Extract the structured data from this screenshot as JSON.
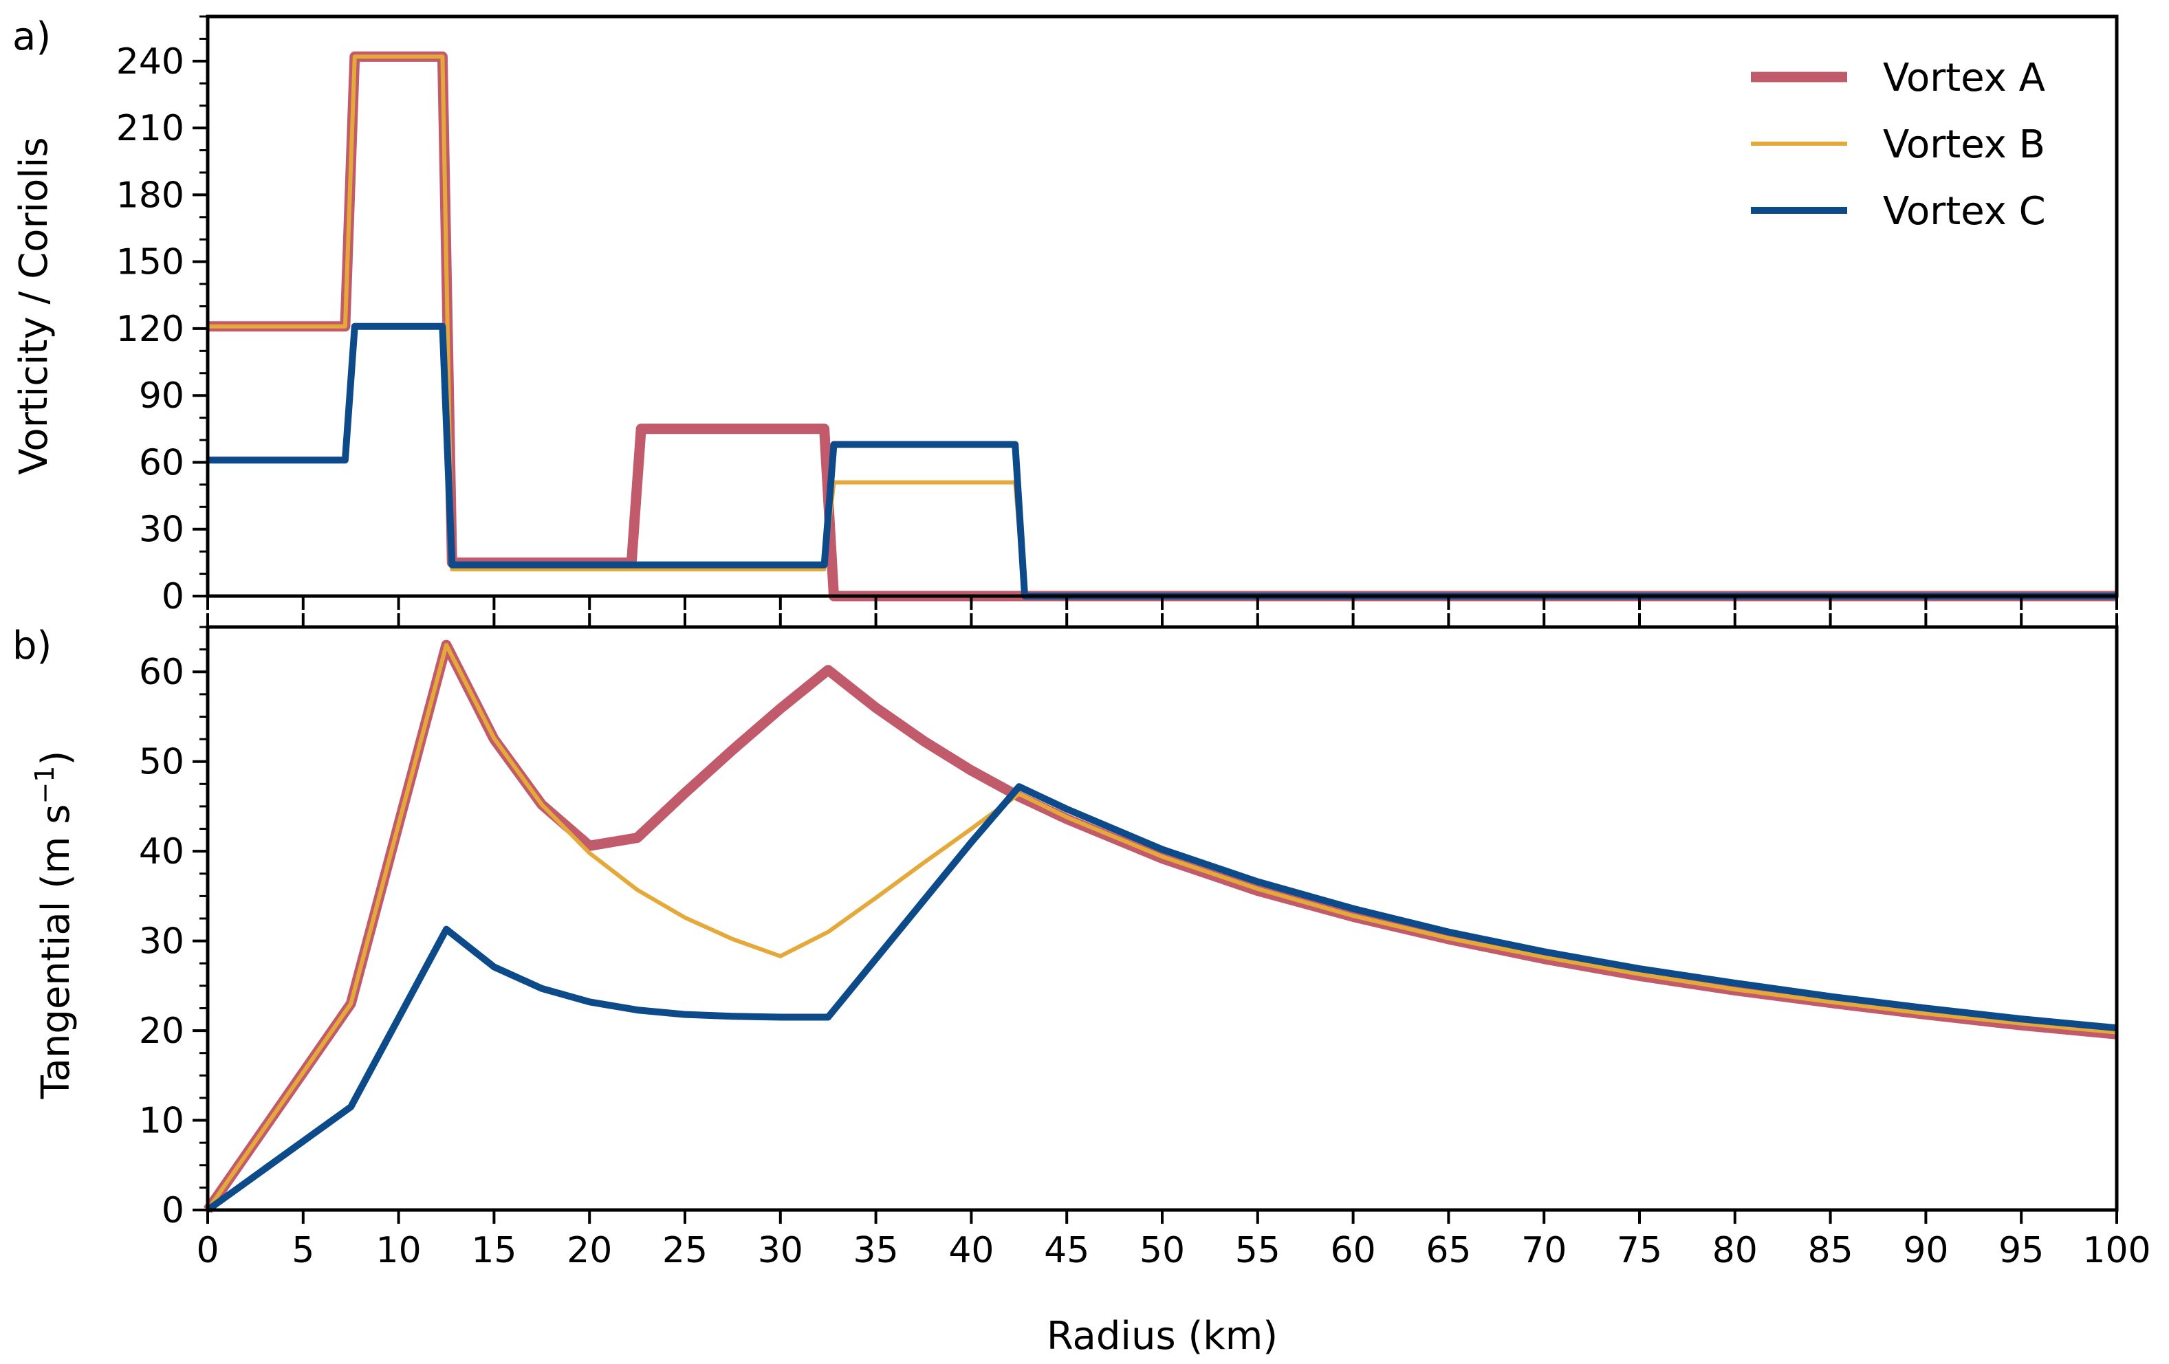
{
  "chart_data": [
    {
      "type": "line",
      "panel_label": "a)",
      "title": "",
      "xlabel": "",
      "ylabel": "Vorticity / Coriolis",
      "xlim": [
        0,
        100
      ],
      "ylim": [
        0,
        260
      ],
      "xticks": [
        0,
        5,
        10,
        15,
        20,
        25,
        30,
        35,
        40,
        45,
        50,
        55,
        60,
        65,
        70,
        75,
        80,
        85,
        90,
        95,
        100
      ],
      "yticks": [
        0,
        30,
        60,
        90,
        120,
        150,
        180,
        210,
        240
      ],
      "ytick_labels": [
        "0",
        "30",
        "60",
        "90",
        "120",
        "150",
        "180",
        "210",
        "240"
      ],
      "grid": false,
      "legend": {
        "location": "top-right",
        "entries": [
          "Vortex A",
          "Vortex B",
          "Vortex C"
        ]
      },
      "series": [
        {
          "name": "Vortex A",
          "color": "#c15a6a",
          "x": [
            0,
            7.2,
            7.7,
            12.3,
            12.8,
            22.2,
            22.7,
            32.3,
            32.8,
            100
          ],
          "y": [
            121,
            121,
            242,
            242,
            15,
            15,
            75,
            75,
            0,
            0
          ]
        },
        {
          "name": "Vortex B",
          "color": "#e5a93a",
          "x": [
            0,
            7.2,
            7.7,
            12.3,
            12.8,
            32.3,
            32.8,
            42.3,
            42.8,
            100
          ],
          "y": [
            121,
            121,
            242,
            242,
            12,
            12,
            51,
            51,
            0,
            0
          ]
        },
        {
          "name": "Vortex C",
          "color": "#0d4a8a",
          "x": [
            0,
            7.2,
            7.7,
            12.3,
            12.8,
            32.3,
            32.8,
            42.3,
            42.8,
            100
          ],
          "y": [
            61,
            61,
            121,
            121,
            14,
            14,
            68,
            68,
            0,
            0
          ]
        }
      ]
    },
    {
      "type": "line",
      "panel_label": "b)",
      "title": "",
      "xlabel": "Radius (km)",
      "ylabel_main": "Tangential (m s",
      "ylabel_sup": "−1",
      "ylabel_close": ")",
      "xlim": [
        0,
        100
      ],
      "ylim": [
        0,
        65
      ],
      "xticks": [
        0,
        5,
        10,
        15,
        20,
        25,
        30,
        35,
        40,
        45,
        50,
        55,
        60,
        65,
        70,
        75,
        80,
        85,
        90,
        95,
        100
      ],
      "xtick_labels": [
        "0",
        "5",
        "10",
        "15",
        "20",
        "25",
        "30",
        "35",
        "40",
        "45",
        "50",
        "55",
        "60",
        "65",
        "70",
        "75",
        "80",
        "85",
        "90",
        "95",
        "100"
      ],
      "yticks": [
        0,
        10,
        20,
        30,
        40,
        50,
        60
      ],
      "ytick_labels": [
        "0",
        "10",
        "20",
        "30",
        "40",
        "50",
        "60"
      ],
      "grid": false,
      "series": [
        {
          "name": "Vortex A",
          "color": "#c15a6a",
          "x": [
            0,
            7.5,
            12.5,
            15,
            17.5,
            20,
            22.5,
            25,
            27.5,
            30,
            32.5,
            35,
            37.5,
            40,
            42.5,
            45,
            50,
            55,
            60,
            65,
            70,
            75,
            80,
            85,
            90,
            95,
            100
          ],
          "y": [
            0,
            23,
            63,
            52.5,
            45.2,
            40.6,
            41.5,
            46.5,
            51.3,
            55.9,
            60.2,
            56.0,
            52.3,
            49.0,
            46.1,
            43.6,
            39.2,
            35.6,
            32.7,
            30.2,
            28.0,
            26.1,
            24.5,
            23.1,
            21.8,
            20.6,
            19.6
          ]
        },
        {
          "name": "Vortex B",
          "color": "#e5a93a",
          "x": [
            0,
            7.5,
            12.5,
            15,
            17.5,
            20,
            22.5,
            25,
            27.5,
            30,
            32.5,
            35,
            37.5,
            40,
            42.5,
            45,
            50,
            55,
            60,
            65,
            70,
            75,
            80,
            85,
            90,
            95,
            100
          ],
          "y": [
            0,
            23,
            63,
            52.6,
            45.2,
            39.8,
            35.7,
            32.6,
            30.2,
            28.3,
            31.0,
            34.8,
            38.7,
            42.5,
            46.4,
            43.8,
            39.4,
            35.8,
            32.8,
            30.3,
            28.2,
            26.3,
            24.6,
            23.2,
            21.9,
            20.8,
            19.8
          ]
        },
        {
          "name": "Vortex C",
          "color": "#0d4a8a",
          "x": [
            0,
            7.5,
            12.5,
            15,
            17.5,
            20,
            22.5,
            25,
            27.5,
            30,
            32.5,
            35,
            37.5,
            40,
            42.5,
            45,
            50,
            55,
            60,
            65,
            70,
            75,
            80,
            85,
            90,
            95,
            100
          ],
          "y": [
            0,
            11.5,
            31.3,
            27.1,
            24.7,
            23.2,
            22.3,
            21.8,
            21.6,
            21.5,
            21.5,
            28.0,
            34.5,
            41.0,
            47.2,
            44.7,
            40.2,
            36.6,
            33.6,
            31.0,
            28.8,
            26.9,
            25.3,
            23.8,
            22.5,
            21.3,
            20.3
          ]
        }
      ]
    }
  ]
}
